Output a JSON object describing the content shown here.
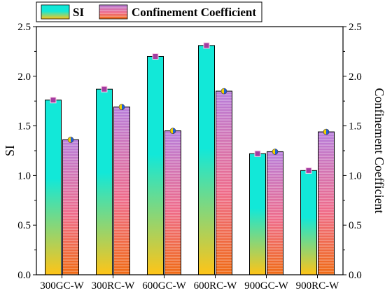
{
  "chart_data": {
    "type": "bar",
    "categories": [
      "300GC-W",
      "300RC-W",
      "600GC-W",
      "600RC-W",
      "900GC-W",
      "900RC-W"
    ],
    "series": [
      {
        "name": "SI",
        "axis": "left",
        "values": [
          1.76,
          1.87,
          2.2,
          2.31,
          1.22,
          1.05
        ]
      },
      {
        "name": "Confinement Coefficient",
        "axis": "right",
        "values": [
          1.36,
          1.69,
          1.45,
          1.85,
          1.24,
          1.44
        ]
      }
    ],
    "ylabel": "SI",
    "y2label": "Confinement Coefficient",
    "ylim": [
      0,
      2.5
    ],
    "y2lim": [
      0,
      2.5
    ],
    "yticks": [
      "0.0",
      "0.5",
      "1.0",
      "1.5",
      "2.0",
      "2.5"
    ],
    "legend_position": "top-left",
    "grid": false
  },
  "colors": {
    "si_top": "#12e8d8",
    "si_bottom": "#ffc417",
    "si_marker": "#a43ca0",
    "cc_top": "#b77ddb",
    "cc_bottom": "#f06a12",
    "cc_marker_left": "#f2d000",
    "cc_marker_right": "#1f5fd6"
  }
}
